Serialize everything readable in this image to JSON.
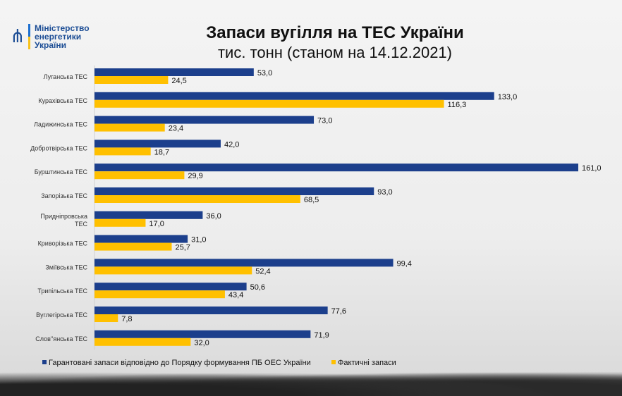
{
  "header": {
    "logo_lines": [
      "Міністерство",
      "енергетики",
      "України"
    ],
    "title": "Запаси вугілля на ТЕС України",
    "subtitle": "тис. тонн (станом на 14.12.2021)"
  },
  "chart_data": {
    "type": "bar",
    "orientation": "horizontal",
    "title": "Запаси вугілля на ТЕС України",
    "subtitle": "тис. тонн (станом на 14.12.2021)",
    "categories": [
      "Луганська ТЕС",
      "Курахівська ТЕС",
      "Ладижинська ТЕС",
      "Добротвірська ТЕС",
      "Бурштинська ТЕС",
      "Запорізька ТЕС",
      "Придніпровська ТЕС",
      "Криворізька ТЕС",
      "Зміївська ТЕС",
      "Трипільська  ТЕС",
      "Вуглегірська  ТЕС",
      "Слов''янська ТЕС"
    ],
    "series": [
      {
        "name": "Гарантовані запаси відповідно до Порядку формування ПБ ОЕС України",
        "color": "#1c3f8c",
        "values": [
          53.0,
          133.0,
          73.0,
          42.0,
          161.0,
          93.0,
          36.0,
          31.0,
          99.4,
          50.6,
          77.6,
          71.9
        ]
      },
      {
        "name": "Фактичні запаси",
        "color": "#ffc000",
        "values": [
          24.5,
          116.3,
          23.4,
          18.7,
          29.9,
          68.5,
          17.0,
          25.7,
          52.4,
          43.4,
          7.8,
          32.0
        ]
      }
    ],
    "xlim": [
      0,
      161
    ],
    "grid": false,
    "legend": "bottom",
    "decimal_separator": ","
  }
}
